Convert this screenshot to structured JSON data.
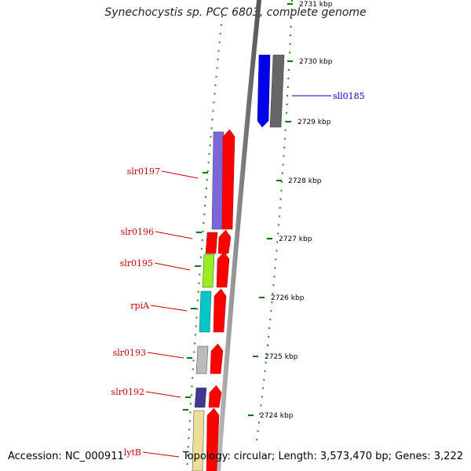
{
  "title": "Synechocystis sp. PCC 6803, complete genome",
  "accession": "Accession: NC_000911",
  "topology": "Topology: circular; Length: 3,573,470 bp; Genes: 3,222",
  "colors": {
    "forward_label": "#cc0000",
    "reverse_label": "#0000cc",
    "tick": "#007700",
    "backbone": "#808080"
  },
  "ticks": [
    {
      "label": "2731 kbp"
    },
    {
      "label": "2730 kbp"
    },
    {
      "label": "2729 kbp"
    },
    {
      "label": "2728 kbp"
    },
    {
      "label": "2727 kbp"
    },
    {
      "label": "2726 kbp"
    },
    {
      "label": "2725 kbp"
    },
    {
      "label": "2724 kbp"
    }
  ],
  "genes": [
    {
      "label": "sll0185",
      "strand": "reverse",
      "color": "#0000ee",
      "shade": "#666666"
    },
    {
      "label": "slr0197",
      "strand": "forward",
      "color": "#7b68d8",
      "shade": "#ff0000"
    },
    {
      "label": "slr0196",
      "strand": "forward",
      "color": "#ff0000",
      "shade": "#ff0000"
    },
    {
      "label": "slr0195",
      "strand": "forward",
      "color": "#99ee22",
      "shade": "#ff0000"
    },
    {
      "label": "rpiA",
      "strand": "forward",
      "color": "#00c8c8",
      "shade": "#ff0000"
    },
    {
      "label": "slr0193",
      "strand": "forward",
      "color": "#bbbbbb",
      "shade": "#ff0000"
    },
    {
      "label": "slr0192",
      "strand": "forward",
      "color": "#3a3a90",
      "shade": "#ff0000"
    },
    {
      "label": "lytB",
      "strand": "forward",
      "color": "#eedd99",
      "shade": "#ff0000"
    }
  ]
}
